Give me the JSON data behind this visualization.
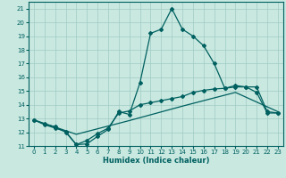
{
  "xlabel": "Humidex (Indice chaleur)",
  "bg_color": "#c8e8e0",
  "grid_color": "#a0ccc4",
  "line_color": "#006060",
  "spine_color": "#006060",
  "xlim": [
    -0.5,
    23.5
  ],
  "ylim": [
    11,
    21.5
  ],
  "yticks": [
    11,
    12,
    13,
    14,
    15,
    16,
    17,
    18,
    19,
    20,
    21
  ],
  "xticks": [
    0,
    1,
    2,
    3,
    4,
    5,
    6,
    7,
    8,
    9,
    10,
    11,
    12,
    13,
    14,
    15,
    16,
    17,
    18,
    19,
    20,
    21,
    22,
    23
  ],
  "line1_x": [
    0,
    1,
    2,
    3,
    4,
    5,
    6,
    7,
    8,
    9,
    10,
    11,
    12,
    13,
    14,
    15,
    16,
    17,
    18,
    19,
    20,
    21,
    22,
    23
  ],
  "line1_y": [
    12.9,
    12.6,
    12.4,
    12.0,
    11.1,
    11.15,
    11.7,
    12.2,
    13.5,
    13.3,
    15.6,
    19.2,
    19.5,
    21.0,
    19.5,
    19.0,
    18.3,
    17.0,
    15.2,
    15.4,
    15.3,
    14.9,
    13.4,
    13.4
  ],
  "line2_x": [
    0,
    1,
    2,
    3,
    4,
    5,
    6,
    7,
    8,
    9,
    10,
    11,
    12,
    13,
    14,
    15,
    16,
    17,
    18,
    19,
    20,
    21,
    22,
    23
  ],
  "line2_y": [
    12.9,
    12.55,
    12.3,
    12.05,
    11.1,
    11.4,
    11.9,
    12.3,
    13.4,
    13.55,
    14.0,
    14.15,
    14.3,
    14.45,
    14.6,
    14.9,
    15.05,
    15.15,
    15.2,
    15.3,
    15.3,
    15.3,
    13.5,
    13.4
  ],
  "line3_x": [
    0,
    4,
    9,
    14,
    19,
    23
  ],
  "line3_y": [
    12.9,
    11.85,
    12.85,
    13.9,
    14.9,
    13.5
  ]
}
